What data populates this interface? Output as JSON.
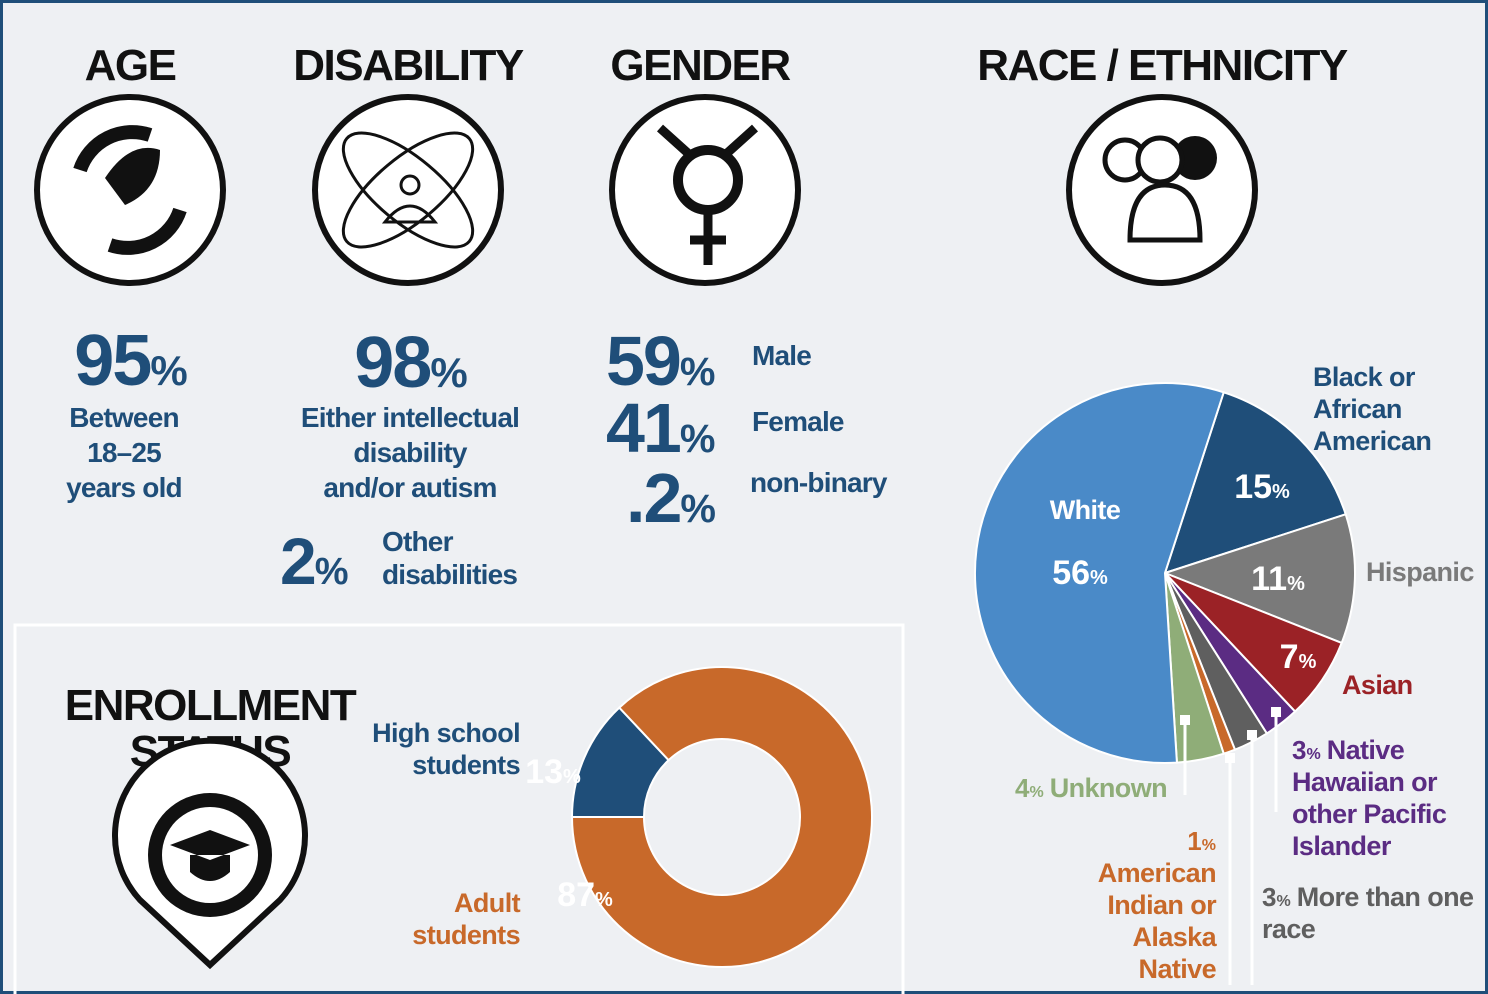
{
  "unit": "%",
  "stats": {
    "age": {
      "title": "AGE",
      "value": 95,
      "label": [
        "Between",
        "18–25",
        "years old"
      ]
    },
    "disability": {
      "title": "DISABILITY",
      "items": [
        {
          "value": 98,
          "label": [
            "Either intellectual",
            "disability",
            "and/or autism"
          ]
        },
        {
          "value": 2,
          "label": [
            "Other",
            "disabilities"
          ]
        }
      ]
    },
    "gender": {
      "title": "GENDER",
      "items": [
        {
          "value": 59,
          "label": "Male"
        },
        {
          "value": 41,
          "label": "Female"
        },
        {
          "value": 0.2,
          "value_label": ".2",
          "label": "non-binary"
        }
      ]
    }
  },
  "chart_data": [
    {
      "type": "donut",
      "title": [
        "ENROLLMENT",
        "STATUS"
      ],
      "categories": [
        "High school students",
        "Adult students"
      ],
      "values": [
        13,
        87
      ],
      "colors": [
        "#1f4e79",
        "#c8692a"
      ]
    },
    {
      "type": "pie",
      "title": "RACE / ETHNICITY",
      "categories": [
        "Black or African American",
        "Hispanic",
        "Asian",
        "Native Hawaiian or other Pacific Islander",
        "More than one race",
        "American Indian or Alaska Native",
        "Unknown",
        "White"
      ],
      "values": [
        15,
        11,
        7,
        3,
        3,
        1,
        4,
        56
      ],
      "colors": [
        "#1f4e79",
        "#7a7a7a",
        "#9b2226",
        "#5b2c83",
        "#5f5f5f",
        "#c8692a",
        "#8fad78",
        "#4a8ac8"
      ]
    }
  ]
}
